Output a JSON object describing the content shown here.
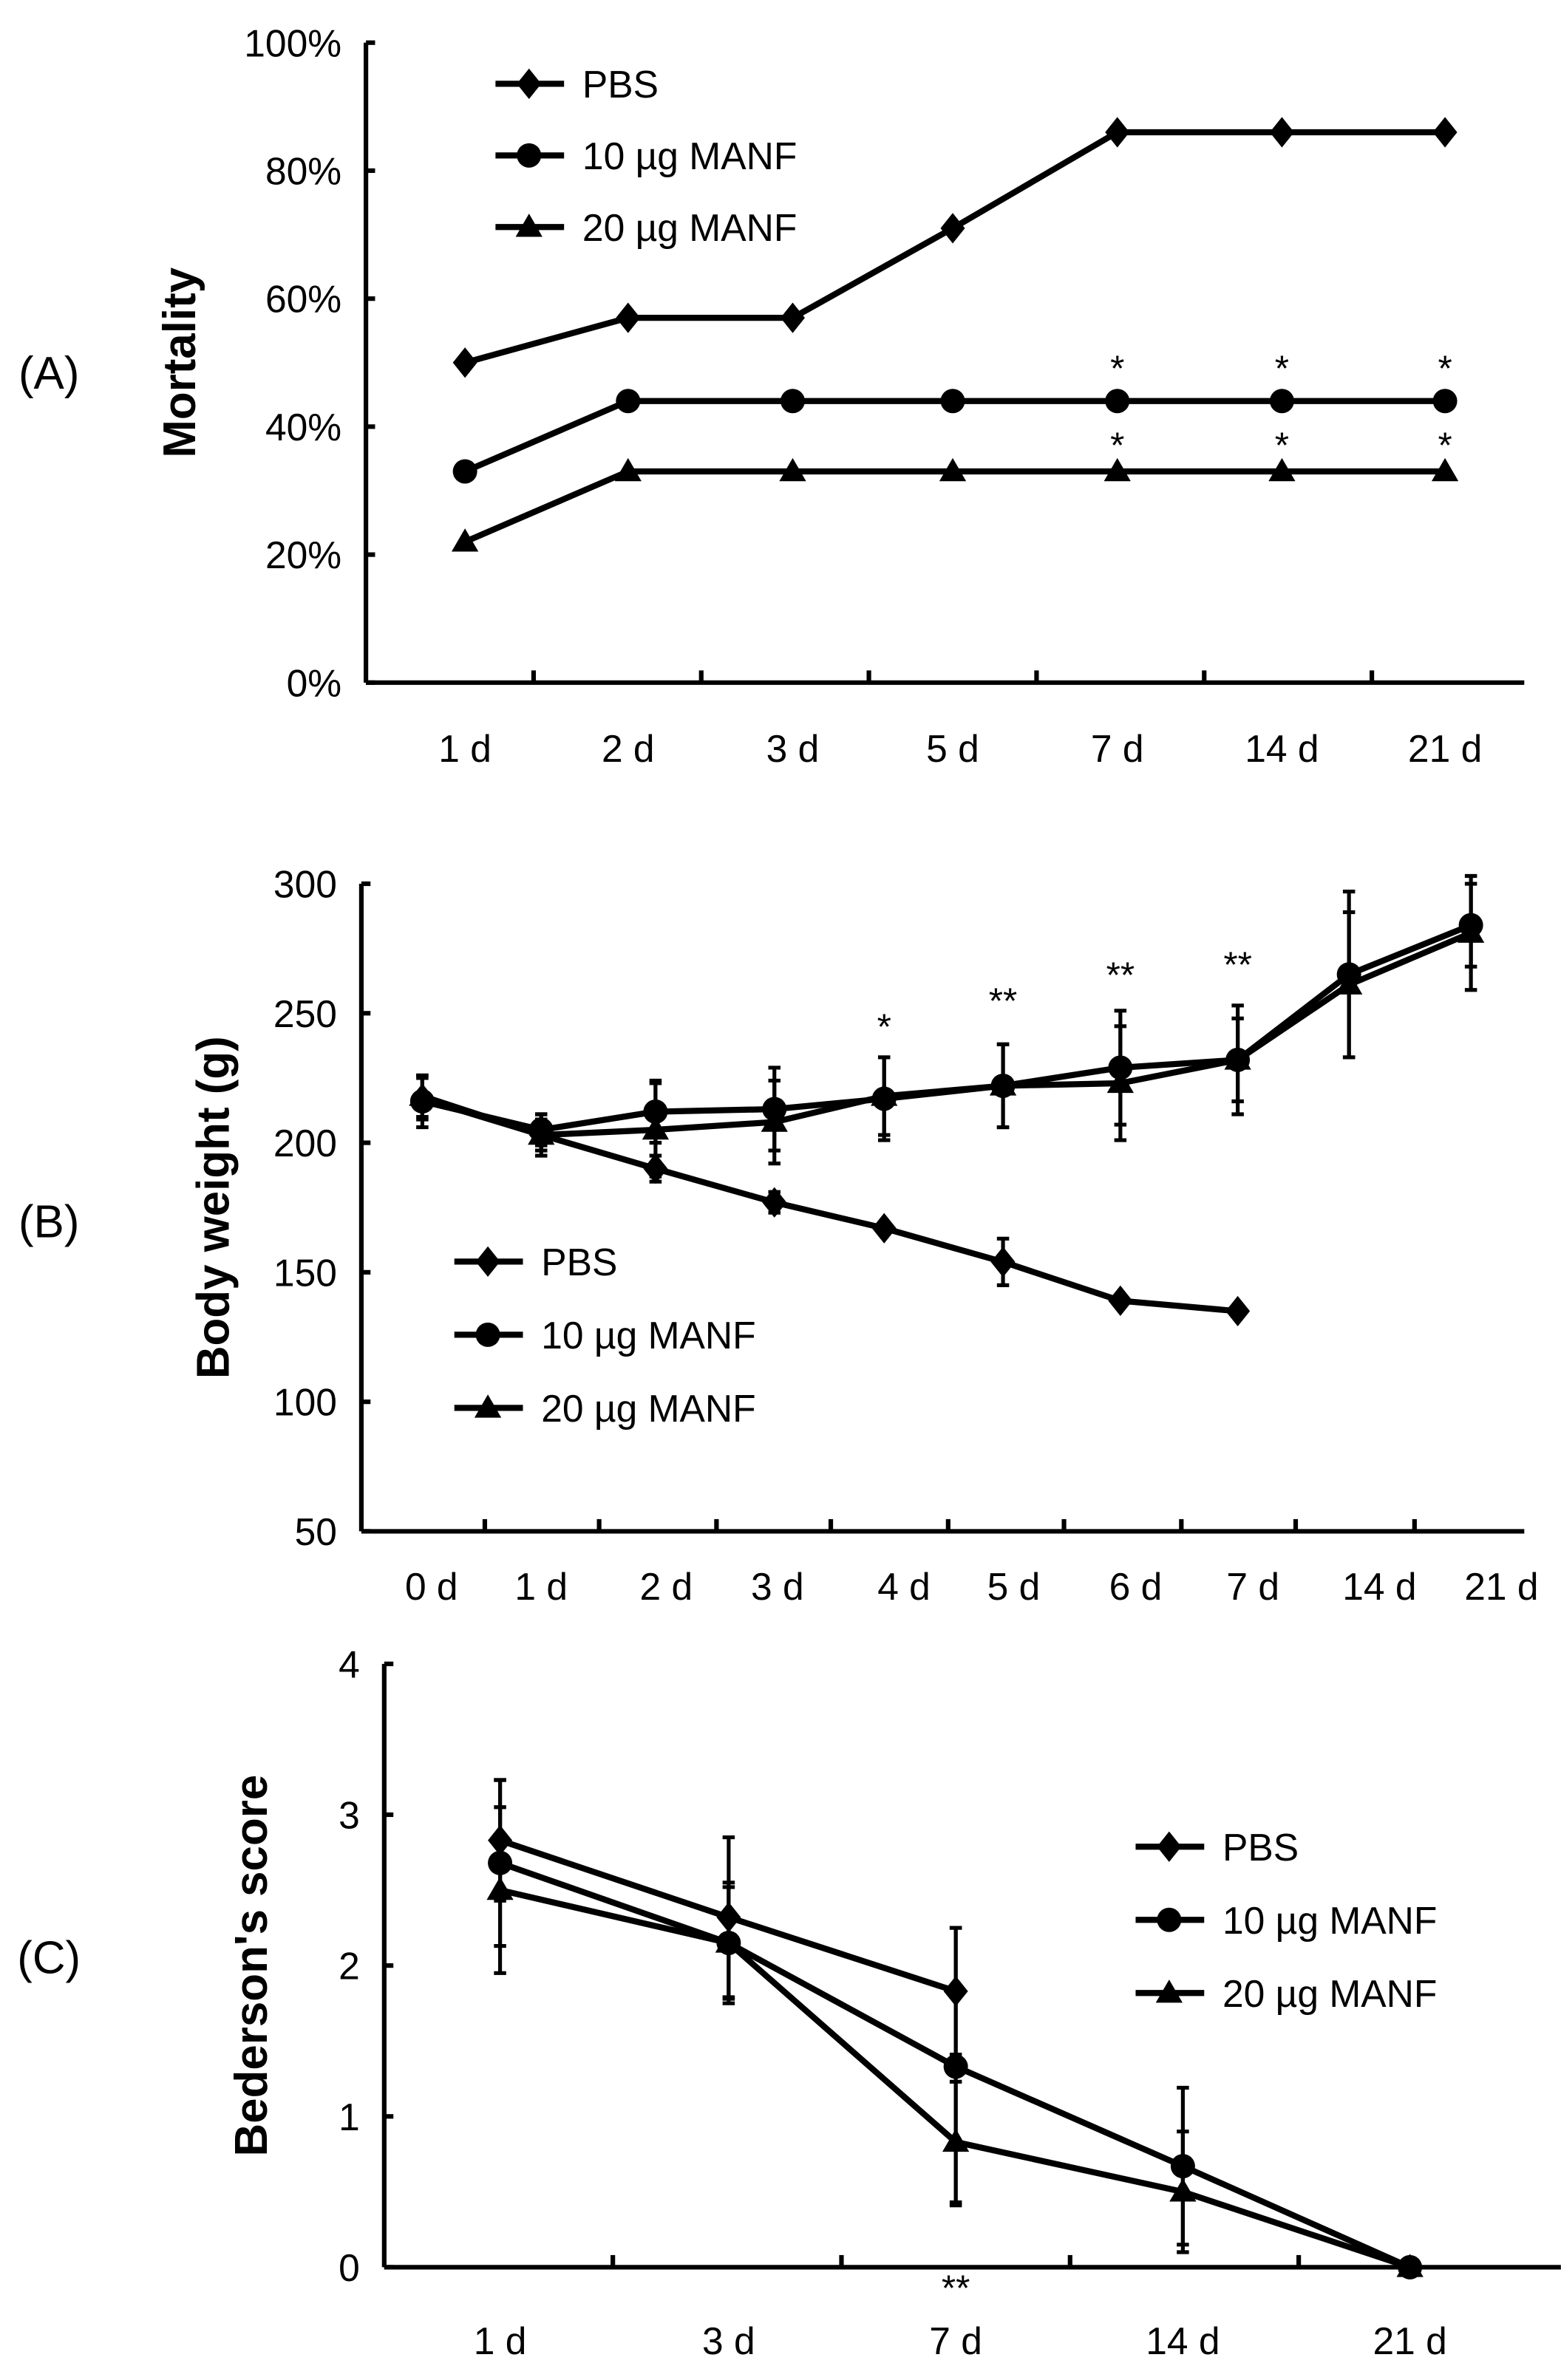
{
  "chart_data": [
    {
      "type": "line",
      "panel_label": "(A)",
      "ylabel": "Mortality",
      "xlabel": "",
      "ylim": [
        0,
        100
      ],
      "yticks": [
        "0%",
        "20%",
        "40%",
        "60%",
        "80%",
        "100%"
      ],
      "categories": [
        "1 d",
        "2 d",
        "3 d",
        "5 d",
        "7 d",
        "14 d",
        "21 d"
      ],
      "legend_position": "top-left",
      "series": [
        {
          "name": "PBS",
          "marker": "diamond",
          "values": [
            50,
            57,
            57,
            71,
            86,
            86,
            86
          ]
        },
        {
          "name": "10 µg MANF",
          "marker": "circle",
          "values": [
            33,
            44,
            44,
            44,
            44,
            44,
            44
          ]
        },
        {
          "name": "20 µg MANF",
          "marker": "triangle",
          "values": [
            22,
            33,
            33,
            33,
            33,
            33,
            33
          ]
        }
      ],
      "annotations": [
        {
          "text": "*",
          "category": "7 d",
          "y": 50
        },
        {
          "text": "*",
          "category": "14 d",
          "y": 50
        },
        {
          "text": "*",
          "category": "21 d",
          "y": 50
        },
        {
          "text": "*",
          "category": "7 d",
          "y": 38
        },
        {
          "text": "*",
          "category": "14 d",
          "y": 38
        },
        {
          "text": "*",
          "category": "21 d",
          "y": 38
        }
      ]
    },
    {
      "type": "line",
      "panel_label": "(B)",
      "ylabel": "Body weight (g)",
      "xlabel": "",
      "ylim": [
        50,
        300
      ],
      "yticks": [
        "50",
        "100",
        "150",
        "200",
        "250",
        "300"
      ],
      "categories": [
        "0 d",
        "1 d",
        "2 d",
        "3 d",
        "4 d",
        "5 d",
        "6 d",
        "7 d",
        "14 d",
        "21 d"
      ],
      "legend_position": "bottom-left",
      "series": [
        {
          "name": "PBS",
          "marker": "diamond",
          "values": [
            217,
            203,
            190,
            177,
            167,
            154,
            139,
            135,
            null,
            null
          ],
          "errors": [
            8,
            6,
            5,
            4,
            2,
            9,
            2,
            2,
            null,
            null
          ]
        },
        {
          "name": "10 µg MANF",
          "marker": "circle",
          "values": [
            216,
            205,
            212,
            213,
            217,
            222,
            229,
            232,
            265,
            284
          ],
          "errors": [
            10,
            6,
            12,
            16,
            16,
            16,
            22,
            21,
            32,
            16
          ]
        },
        {
          "name": "20 µg MANF",
          "marker": "triangle",
          "values": [
            218,
            203,
            205,
            208,
            218,
            222,
            223,
            232,
            261,
            281
          ],
          "errors": [
            8,
            8,
            18,
            16,
            15,
            16,
            22,
            16,
            28,
            22
          ]
        }
      ],
      "annotations": [
        {
          "text": "*",
          "category": "4 d",
          "y": 247
        },
        {
          "text": "**",
          "category": "5 d",
          "y": 257
        },
        {
          "text": "**",
          "category": "6 d",
          "y": 267
        },
        {
          "text": "**",
          "category": "7 d",
          "y": 271
        }
      ]
    },
    {
      "type": "line",
      "panel_label": "(C)",
      "ylabel": "Bederson's score",
      "xlabel": "",
      "ylim": [
        0,
        4
      ],
      "yticks": [
        "0",
        "1",
        "2",
        "3",
        "4"
      ],
      "categories": [
        "1 d",
        "3 d",
        "7 d",
        "14 d",
        "21 d"
      ],
      "legend_position": "right",
      "series": [
        {
          "name": "PBS",
          "marker": "diamond",
          "values": [
            2.83,
            2.32,
            1.83,
            null,
            null
          ],
          "errors": [
            0.4,
            0.53,
            0.42,
            null,
            null
          ]
        },
        {
          "name": "10 µg MANF",
          "marker": "circle",
          "values": [
            2.68,
            2.15,
            1.33,
            0.67,
            0
          ],
          "errors": [
            0.55,
            0.4,
            0.92,
            0.52,
            0
          ]
        },
        {
          "name": "20 µg MANF",
          "marker": "triangle",
          "values": [
            2.5,
            2.15,
            0.83,
            0.5,
            0
          ],
          "errors": [
            0.55,
            0.37,
            0.4,
            0.4,
            0
          ]
        }
      ],
      "annotations": [
        {
          "text": "**",
          "category": "7 d",
          "y": -0.1
        }
      ]
    }
  ]
}
